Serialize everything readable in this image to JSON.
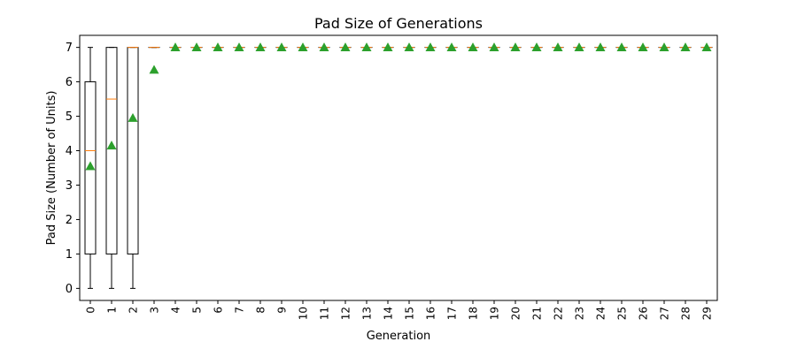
{
  "chart_data": {
    "type": "box",
    "title": "Pad Size of Generations",
    "xlabel": "Generation",
    "ylabel": "Pad Size (Number of Units)",
    "ylim": [
      -0.35,
      7.35
    ],
    "yticks": [
      0,
      1,
      2,
      3,
      4,
      5,
      6,
      7
    ],
    "categories": [
      "0",
      "1",
      "2",
      "3",
      "4",
      "5",
      "6",
      "7",
      "8",
      "9",
      "10",
      "11",
      "12",
      "13",
      "14",
      "15",
      "16",
      "17",
      "18",
      "19",
      "20",
      "21",
      "22",
      "23",
      "24",
      "25",
      "26",
      "27",
      "28",
      "29"
    ],
    "boxes": [
      {
        "min": 0,
        "q1": 1,
        "median": 4,
        "q3": 6,
        "max": 7,
        "mean": 3.55
      },
      {
        "min": 0,
        "q1": 1,
        "median": 5.5,
        "q3": 7,
        "max": 7,
        "mean": 4.15
      },
      {
        "min": 0,
        "q1": 1,
        "median": 7,
        "q3": 7,
        "max": 7,
        "mean": 4.95
      },
      {
        "min": 7,
        "q1": 7,
        "median": 7,
        "q3": 7,
        "max": 7,
        "mean": 6.35
      },
      {
        "min": 7,
        "q1": 7,
        "median": 7,
        "q3": 7,
        "max": 7,
        "mean": 7
      },
      {
        "min": 7,
        "q1": 7,
        "median": 7,
        "q3": 7,
        "max": 7,
        "mean": 7
      },
      {
        "min": 7,
        "q1": 7,
        "median": 7,
        "q3": 7,
        "max": 7,
        "mean": 7
      },
      {
        "min": 7,
        "q1": 7,
        "median": 7,
        "q3": 7,
        "max": 7,
        "mean": 7
      },
      {
        "min": 7,
        "q1": 7,
        "median": 7,
        "q3": 7,
        "max": 7,
        "mean": 7
      },
      {
        "min": 7,
        "q1": 7,
        "median": 7,
        "q3": 7,
        "max": 7,
        "mean": 7
      },
      {
        "min": 7,
        "q1": 7,
        "median": 7,
        "q3": 7,
        "max": 7,
        "mean": 7
      },
      {
        "min": 7,
        "q1": 7,
        "median": 7,
        "q3": 7,
        "max": 7,
        "mean": 7
      },
      {
        "min": 7,
        "q1": 7,
        "median": 7,
        "q3": 7,
        "max": 7,
        "mean": 7
      },
      {
        "min": 7,
        "q1": 7,
        "median": 7,
        "q3": 7,
        "max": 7,
        "mean": 7
      },
      {
        "min": 7,
        "q1": 7,
        "median": 7,
        "q3": 7,
        "max": 7,
        "mean": 7
      },
      {
        "min": 7,
        "q1": 7,
        "median": 7,
        "q3": 7,
        "max": 7,
        "mean": 7
      },
      {
        "min": 7,
        "q1": 7,
        "median": 7,
        "q3": 7,
        "max": 7,
        "mean": 7
      },
      {
        "min": 7,
        "q1": 7,
        "median": 7,
        "q3": 7,
        "max": 7,
        "mean": 7
      },
      {
        "min": 7,
        "q1": 7,
        "median": 7,
        "q3": 7,
        "max": 7,
        "mean": 7
      },
      {
        "min": 7,
        "q1": 7,
        "median": 7,
        "q3": 7,
        "max": 7,
        "mean": 7
      },
      {
        "min": 7,
        "q1": 7,
        "median": 7,
        "q3": 7,
        "max": 7,
        "mean": 7
      },
      {
        "min": 7,
        "q1": 7,
        "median": 7,
        "q3": 7,
        "max": 7,
        "mean": 7
      },
      {
        "min": 7,
        "q1": 7,
        "median": 7,
        "q3": 7,
        "max": 7,
        "mean": 7
      },
      {
        "min": 7,
        "q1": 7,
        "median": 7,
        "q3": 7,
        "max": 7,
        "mean": 7
      },
      {
        "min": 7,
        "q1": 7,
        "median": 7,
        "q3": 7,
        "max": 7,
        "mean": 7
      },
      {
        "min": 7,
        "q1": 7,
        "median": 7,
        "q3": 7,
        "max": 7,
        "mean": 7
      },
      {
        "min": 7,
        "q1": 7,
        "median": 7,
        "q3": 7,
        "max": 7,
        "mean": 7
      },
      {
        "min": 7,
        "q1": 7,
        "median": 7,
        "q3": 7,
        "max": 7,
        "mean": 7
      },
      {
        "min": 7,
        "q1": 7,
        "median": 7,
        "q3": 7,
        "max": 7,
        "mean": 7
      },
      {
        "min": 7,
        "q1": 7,
        "median": 7,
        "q3": 7,
        "max": 7,
        "mean": 7
      }
    ],
    "grid": false,
    "x_tick_rotation": "vertical",
    "colors": {
      "box": "#000000",
      "median": "#ff7f0e",
      "mean": "#2ca02c",
      "background": "#ffffff"
    }
  }
}
